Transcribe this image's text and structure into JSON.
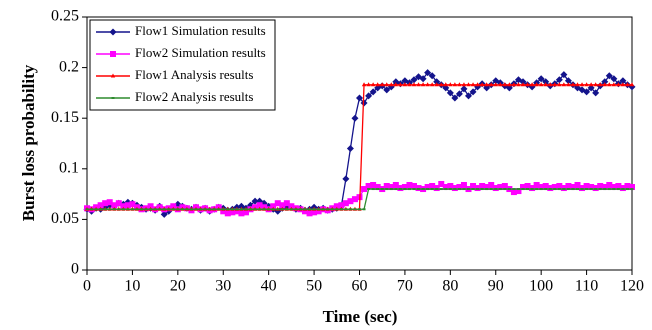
{
  "chart_data": {
    "type": "line",
    "xlabel": "Time (sec)",
    "ylabel": "Burst loss probability",
    "xlim": [
      0,
      120
    ],
    "xticks": [
      0,
      10,
      20,
      30,
      40,
      50,
      60,
      70,
      80,
      90,
      100,
      110,
      120
    ],
    "ylim": [
      0,
      0.25
    ],
    "yticks": [
      0,
      0.05,
      0.1,
      0.15,
      0.2,
      0.25
    ],
    "legend": "upper left",
    "x": [
      0,
      1,
      2,
      3,
      4,
      5,
      6,
      7,
      8,
      9,
      10,
      11,
      12,
      13,
      14,
      15,
      16,
      17,
      18,
      19,
      20,
      21,
      22,
      23,
      24,
      25,
      26,
      27,
      28,
      29,
      30,
      31,
      32,
      33,
      34,
      35,
      36,
      37,
      38,
      39,
      40,
      41,
      42,
      43,
      44,
      45,
      46,
      47,
      48,
      49,
      50,
      51,
      52,
      53,
      54,
      55,
      56,
      57,
      58,
      59,
      60,
      61,
      62,
      63,
      64,
      65,
      66,
      67,
      68,
      69,
      70,
      71,
      72,
      73,
      74,
      75,
      76,
      77,
      78,
      79,
      80,
      81,
      82,
      83,
      84,
      85,
      86,
      87,
      88,
      89,
      90,
      91,
      92,
      93,
      94,
      95,
      96,
      97,
      98,
      99,
      100,
      101,
      102,
      103,
      104,
      105,
      106,
      107,
      108,
      109,
      110,
      111,
      112,
      113,
      114,
      115,
      116,
      117,
      118,
      119,
      120
    ],
    "series": [
      {
        "name": "Flow1 Simulation results",
        "color": "#14148c",
        "marker": "diamond",
        "values": [
          0.06,
          0.058,
          0.061,
          0.06,
          0.062,
          0.064,
          0.063,
          0.066,
          0.065,
          0.067,
          0.066,
          0.064,
          0.062,
          0.06,
          0.061,
          0.059,
          0.063,
          0.055,
          0.058,
          0.062,
          0.065,
          0.063,
          0.061,
          0.06,
          0.062,
          0.059,
          0.061,
          0.058,
          0.06,
          0.062,
          0.061,
          0.059,
          0.06,
          0.062,
          0.063,
          0.061,
          0.064,
          0.068,
          0.068,
          0.066,
          0.063,
          0.06,
          0.058,
          0.061,
          0.063,
          0.062,
          0.06,
          0.061,
          0.059,
          0.06,
          0.062,
          0.06,
          0.061,
          0.059,
          0.06,
          0.061,
          0.063,
          0.09,
          0.12,
          0.15,
          0.17,
          0.165,
          0.172,
          0.176,
          0.18,
          0.182,
          0.178,
          0.181,
          0.186,
          0.184,
          0.187,
          0.185,
          0.188,
          0.191,
          0.189,
          0.195,
          0.192,
          0.186,
          0.183,
          0.18,
          0.175,
          0.17,
          0.174,
          0.179,
          0.172,
          0.176,
          0.181,
          0.184,
          0.18,
          0.183,
          0.187,
          0.185,
          0.182,
          0.18,
          0.184,
          0.188,
          0.186,
          0.183,
          0.181,
          0.185,
          0.189,
          0.186,
          0.182,
          0.184,
          0.188,
          0.193,
          0.187,
          0.183,
          0.18,
          0.178,
          0.176,
          0.18,
          0.175,
          0.182,
          0.186,
          0.192,
          0.189,
          0.184,
          0.187,
          0.183,
          0.181
        ]
      },
      {
        "name": "Flow2 Simulation results",
        "color": "#ff00ff",
        "marker": "square",
        "values": [
          0.061,
          0.06,
          0.062,
          0.064,
          0.066,
          0.067,
          0.064,
          0.066,
          0.063,
          0.064,
          0.065,
          0.062,
          0.06,
          0.061,
          0.063,
          0.06,
          0.062,
          0.06,
          0.061,
          0.063,
          0.06,
          0.062,
          0.061,
          0.059,
          0.062,
          0.06,
          0.061,
          0.059,
          0.06,
          0.062,
          0.058,
          0.056,
          0.057,
          0.058,
          0.056,
          0.057,
          0.06,
          0.062,
          0.064,
          0.062,
          0.06,
          0.063,
          0.066,
          0.064,
          0.066,
          0.063,
          0.061,
          0.06,
          0.058,
          0.056,
          0.057,
          0.058,
          0.06,
          0.059,
          0.061,
          0.063,
          0.064,
          0.066,
          0.068,
          0.07,
          0.072,
          0.08,
          0.083,
          0.084,
          0.082,
          0.08,
          0.083,
          0.082,
          0.084,
          0.081,
          0.082,
          0.084,
          0.083,
          0.081,
          0.08,
          0.082,
          0.083,
          0.081,
          0.085,
          0.082,
          0.083,
          0.081,
          0.082,
          0.084,
          0.08,
          0.083,
          0.081,
          0.083,
          0.082,
          0.084,
          0.081,
          0.082,
          0.083,
          0.08,
          0.077,
          0.078,
          0.082,
          0.083,
          0.081,
          0.084,
          0.082,
          0.083,
          0.081,
          0.082,
          0.083,
          0.081,
          0.083,
          0.082,
          0.084,
          0.081,
          0.083,
          0.082,
          0.081,
          0.083,
          0.082,
          0.084,
          0.082,
          0.083,
          0.081,
          0.083,
          0.082
        ]
      },
      {
        "name": "Flow1 Analysis results",
        "color": "#ff0000",
        "marker": "triangle",
        "values": [
          0.06,
          0.06,
          0.06,
          0.06,
          0.06,
          0.06,
          0.06,
          0.06,
          0.06,
          0.06,
          0.06,
          0.06,
          0.06,
          0.06,
          0.06,
          0.06,
          0.06,
          0.06,
          0.06,
          0.06,
          0.06,
          0.06,
          0.06,
          0.06,
          0.06,
          0.06,
          0.06,
          0.06,
          0.06,
          0.06,
          0.06,
          0.06,
          0.06,
          0.06,
          0.06,
          0.06,
          0.06,
          0.06,
          0.06,
          0.06,
          0.06,
          0.06,
          0.06,
          0.06,
          0.06,
          0.06,
          0.06,
          0.06,
          0.06,
          0.06,
          0.06,
          0.06,
          0.06,
          0.06,
          0.06,
          0.06,
          0.06,
          0.06,
          0.06,
          0.06,
          0.06,
          0.183,
          0.183,
          0.183,
          0.183,
          0.183,
          0.183,
          0.183,
          0.183,
          0.183,
          0.183,
          0.183,
          0.183,
          0.183,
          0.183,
          0.183,
          0.183,
          0.183,
          0.183,
          0.183,
          0.183,
          0.183,
          0.183,
          0.183,
          0.183,
          0.183,
          0.183,
          0.183,
          0.183,
          0.183,
          0.183,
          0.183,
          0.183,
          0.183,
          0.183,
          0.183,
          0.183,
          0.183,
          0.183,
          0.183,
          0.183,
          0.183,
          0.183,
          0.183,
          0.183,
          0.183,
          0.183,
          0.183,
          0.183,
          0.183,
          0.183,
          0.183,
          0.183,
          0.183,
          0.183,
          0.183,
          0.183,
          0.183,
          0.183,
          0.183,
          0.183
        ]
      },
      {
        "name": "Flow2 Analysis results",
        "color": "#2e8b2e",
        "marker": "dash",
        "values": [
          0.06,
          0.06,
          0.06,
          0.06,
          0.06,
          0.06,
          0.06,
          0.06,
          0.06,
          0.06,
          0.06,
          0.06,
          0.06,
          0.06,
          0.06,
          0.06,
          0.06,
          0.06,
          0.06,
          0.06,
          0.06,
          0.06,
          0.06,
          0.06,
          0.06,
          0.06,
          0.06,
          0.06,
          0.06,
          0.06,
          0.06,
          0.06,
          0.06,
          0.06,
          0.06,
          0.06,
          0.06,
          0.06,
          0.06,
          0.06,
          0.06,
          0.06,
          0.06,
          0.06,
          0.06,
          0.06,
          0.06,
          0.06,
          0.06,
          0.06,
          0.06,
          0.06,
          0.06,
          0.06,
          0.06,
          0.06,
          0.06,
          0.06,
          0.06,
          0.06,
          0.06,
          0.06,
          0.08,
          0.08,
          0.08,
          0.08,
          0.08,
          0.08,
          0.08,
          0.08,
          0.08,
          0.08,
          0.08,
          0.08,
          0.08,
          0.08,
          0.08,
          0.08,
          0.08,
          0.08,
          0.08,
          0.08,
          0.08,
          0.08,
          0.08,
          0.08,
          0.08,
          0.08,
          0.08,
          0.08,
          0.08,
          0.08,
          0.08,
          0.08,
          0.08,
          0.08,
          0.08,
          0.08,
          0.08,
          0.08,
          0.08,
          0.08,
          0.08,
          0.08,
          0.08,
          0.08,
          0.08,
          0.08,
          0.08,
          0.08,
          0.08,
          0.08,
          0.08,
          0.08,
          0.08,
          0.08,
          0.08,
          0.08,
          0.08,
          0.08,
          0.08
        ]
      }
    ]
  }
}
